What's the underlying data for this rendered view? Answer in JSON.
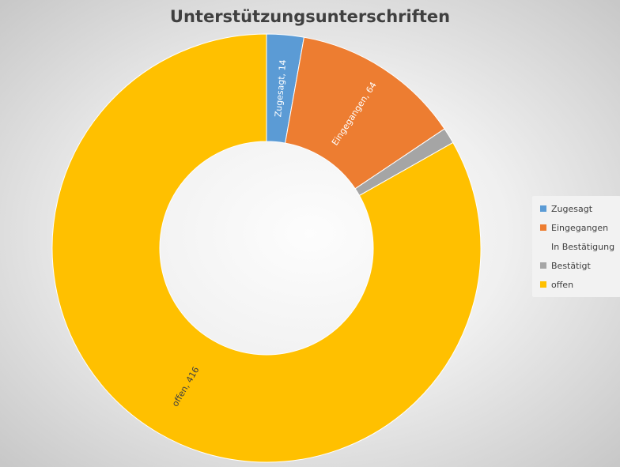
{
  "chart_data": {
    "type": "donut",
    "title": "Unterstützungsunterschriften",
    "categories": [
      "Zugesagt",
      "Eingegangen",
      "In Bestätigung",
      "Bestätigt",
      "offen"
    ],
    "values": [
      14,
      64,
      0,
      6,
      416
    ],
    "data_labels": [
      {
        "category": "Zugesagt",
        "text": "Zugesagt, 14"
      },
      {
        "category": "Eingegangen",
        "text": "Eingegangen, 64"
      },
      {
        "category": "offen",
        "text": "offen, 416"
      }
    ],
    "colors": {
      "Zugesagt": "#5b9bd5",
      "Eingegangen": "#ed7d31",
      "In Bestätigung": "#f2f2f2",
      "Bestätigt": "#a5a5a5",
      "offen": "#ffc000"
    },
    "data_label_colors": {
      "Zugesagt": "#ffffff",
      "Eingegangen": "#ffffff",
      "offen": "#404040"
    },
    "legend_position": "right",
    "start_angle": "top, clockwise"
  }
}
